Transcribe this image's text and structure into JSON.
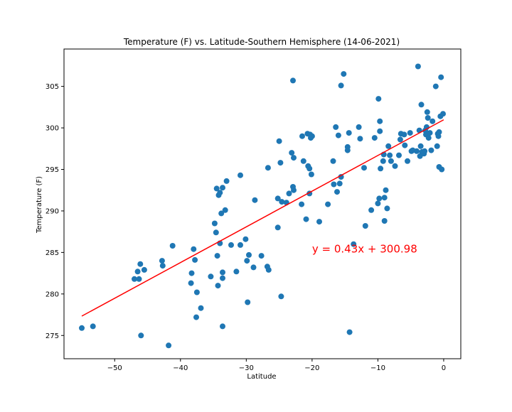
{
  "chart_data": {
    "type": "scatter",
    "title": "Temperature (F) vs. Latitude-Southern Hemisphere (14-06-2021)",
    "xlabel": "Latitude",
    "ylabel": "Temperature (F)",
    "xlim": [
      -57.7,
      2.6
    ],
    "ylim": [
      272.2,
      309.5
    ],
    "xticks": [
      -50,
      -40,
      -30,
      -20,
      -10,
      0
    ],
    "yticks": [
      275,
      280,
      285,
      290,
      295,
      300,
      305
    ],
    "xtick_labels": [
      "−50",
      "−40",
      "−30",
      "−20",
      "−10",
      "0"
    ],
    "ytick_labels": [
      "275",
      "280",
      "285",
      "290",
      "295",
      "300",
      "305"
    ],
    "grid": false,
    "marker_color": "#1f77b4",
    "regression": {
      "slope": 0.43,
      "intercept": 300.98,
      "x_range": [
        -55,
        0
      ],
      "color": "#ff0000",
      "label": "y = 0.43x + 300.98",
      "label_anchor": [
        -20,
        285
      ]
    },
    "points": [
      [
        -55.0,
        275.9
      ],
      [
        -53.3,
        276.1
      ],
      [
        -47.0,
        281.8
      ],
      [
        -46.5,
        282.7
      ],
      [
        -46.3,
        281.8
      ],
      [
        -46.1,
        283.6
      ],
      [
        -46.0,
        275.0
      ],
      [
        -45.5,
        282.9
      ],
      [
        -42.8,
        284.0
      ],
      [
        -42.7,
        283.4
      ],
      [
        -41.8,
        273.8
      ],
      [
        -41.2,
        285.8
      ],
      [
        -38.4,
        281.3
      ],
      [
        -38.3,
        282.5
      ],
      [
        -38.0,
        285.4
      ],
      [
        -37.8,
        284.1
      ],
      [
        -37.6,
        277.2
      ],
      [
        -37.5,
        280.2
      ],
      [
        -36.9,
        278.3
      ],
      [
        -35.4,
        282.1
      ],
      [
        -34.8,
        288.5
      ],
      [
        -34.6,
        287.4
      ],
      [
        -34.5,
        292.7
      ],
      [
        -34.4,
        284.6
      ],
      [
        -34.3,
        281.0
      ],
      [
        -34.2,
        291.9
      ],
      [
        -34.0,
        286.1
      ],
      [
        -34.0,
        292.2
      ],
      [
        -33.8,
        289.7
      ],
      [
        -33.6,
        282.6
      ],
      [
        -33.6,
        281.9
      ],
      [
        -33.6,
        276.1
      ],
      [
        -33.6,
        292.8
      ],
      [
        -33.2,
        290.1
      ],
      [
        -33.0,
        293.6
      ],
      [
        -32.3,
        285.9
      ],
      [
        -31.5,
        282.7
      ],
      [
        -30.9,
        294.3
      ],
      [
        -30.9,
        285.9
      ],
      [
        -30.1,
        286.6
      ],
      [
        -29.9,
        284.0
      ],
      [
        -29.8,
        279.0
      ],
      [
        -29.6,
        284.7
      ],
      [
        -28.9,
        283.2
      ],
      [
        -28.7,
        291.3
      ],
      [
        -27.7,
        284.6
      ],
      [
        -26.8,
        283.3
      ],
      [
        -26.7,
        295.2
      ],
      [
        -26.6,
        282.9
      ],
      [
        -25.2,
        288.0
      ],
      [
        -25.2,
        291.5
      ],
      [
        -25.0,
        298.4
      ],
      [
        -24.8,
        295.8
      ],
      [
        -24.7,
        279.7
      ],
      [
        -24.6,
        291.1
      ],
      [
        -23.9,
        291.0
      ],
      [
        -23.5,
        292.1
      ],
      [
        -23.1,
        297.0
      ],
      [
        -22.9,
        305.7
      ],
      [
        -22.9,
        292.9
      ],
      [
        -22.8,
        296.4
      ],
      [
        -22.8,
        292.5
      ],
      [
        -21.6,
        290.8
      ],
      [
        -21.5,
        299.0
      ],
      [
        -21.3,
        296.0
      ],
      [
        -20.9,
        289.0
      ],
      [
        -20.7,
        299.3
      ],
      [
        -20.6,
        295.4
      ],
      [
        -20.4,
        295.1
      ],
      [
        -20.4,
        292.1
      ],
      [
        -20.3,
        299.2
      ],
      [
        -20.2,
        298.8
      ],
      [
        -20.1,
        294.4
      ],
      [
        -20.0,
        299.0
      ],
      [
        -18.9,
        288.7
      ],
      [
        -17.6,
        290.8
      ],
      [
        -16.8,
        296.0
      ],
      [
        -16.7,
        293.2
      ],
      [
        -16.4,
        300.1
      ],
      [
        -16.2,
        292.3
      ],
      [
        -16.0,
        299.1
      ],
      [
        -15.8,
        293.3
      ],
      [
        -15.6,
        305.1
      ],
      [
        -15.6,
        294.1
      ],
      [
        -15.2,
        306.5
      ],
      [
        -14.6,
        297.7
      ],
      [
        -14.6,
        297.3
      ],
      [
        -14.4,
        299.4
      ],
      [
        -14.3,
        275.4
      ],
      [
        -13.7,
        286.0
      ],
      [
        -12.9,
        300.1
      ],
      [
        -12.7,
        298.7
      ],
      [
        -12.1,
        295.2
      ],
      [
        -11.9,
        288.2
      ],
      [
        -11.0,
        290.1
      ],
      [
        -10.5,
        298.8
      ],
      [
        -10.0,
        290.9
      ],
      [
        -9.9,
        303.5
      ],
      [
        -9.8,
        291.5
      ],
      [
        -9.7,
        299.6
      ],
      [
        -9.7,
        300.8
      ],
      [
        -9.6,
        295.1
      ],
      [
        -9.2,
        296.0
      ],
      [
        -9.1,
        296.8
      ],
      [
        -9.0,
        291.6
      ],
      [
        -9.0,
        288.8
      ],
      [
        -8.8,
        292.5
      ],
      [
        -8.6,
        290.3
      ],
      [
        -8.4,
        297.8
      ],
      [
        -8.2,
        296.7
      ],
      [
        -8.0,
        296.0
      ],
      [
        -7.4,
        295.4
      ],
      [
        -6.8,
        296.7
      ],
      [
        -6.6,
        298.6
      ],
      [
        -6.5,
        299.3
      ],
      [
        -6.0,
        299.2
      ],
      [
        -5.9,
        297.9
      ],
      [
        -5.5,
        296.0
      ],
      [
        -5.1,
        299.4
      ],
      [
        -4.9,
        297.2
      ],
      [
        -4.7,
        297.3
      ],
      [
        -4.1,
        297.2
      ],
      [
        -3.9,
        307.4
      ],
      [
        -3.7,
        299.7
      ],
      [
        -3.6,
        296.6
      ],
      [
        -3.5,
        297.8
      ],
      [
        -3.4,
        302.8
      ],
      [
        -3.3,
        297.1
      ],
      [
        -3.2,
        297.0
      ],
      [
        -3.0,
        296.9
      ],
      [
        -2.9,
        297.2
      ],
      [
        -2.8,
        299.7
      ],
      [
        -2.7,
        299.2
      ],
      [
        -2.6,
        300.1
      ],
      [
        -2.5,
        301.9
      ],
      [
        -2.4,
        301.2
      ],
      [
        -2.3,
        298.8
      ],
      [
        -2.1,
        299.4
      ],
      [
        -1.9,
        297.3
      ],
      [
        -1.7,
        300.8
      ],
      [
        -1.2,
        305.0
      ],
      [
        -1.0,
        297.8
      ],
      [
        -0.9,
        299.3
      ],
      [
        -0.8,
        299.0
      ],
      [
        -0.7,
        295.3
      ],
      [
        -0.7,
        299.5
      ],
      [
        -0.5,
        301.4
      ],
      [
        -0.4,
        306.1
      ],
      [
        -0.3,
        295.0
      ],
      [
        -0.1,
        301.7
      ]
    ]
  }
}
